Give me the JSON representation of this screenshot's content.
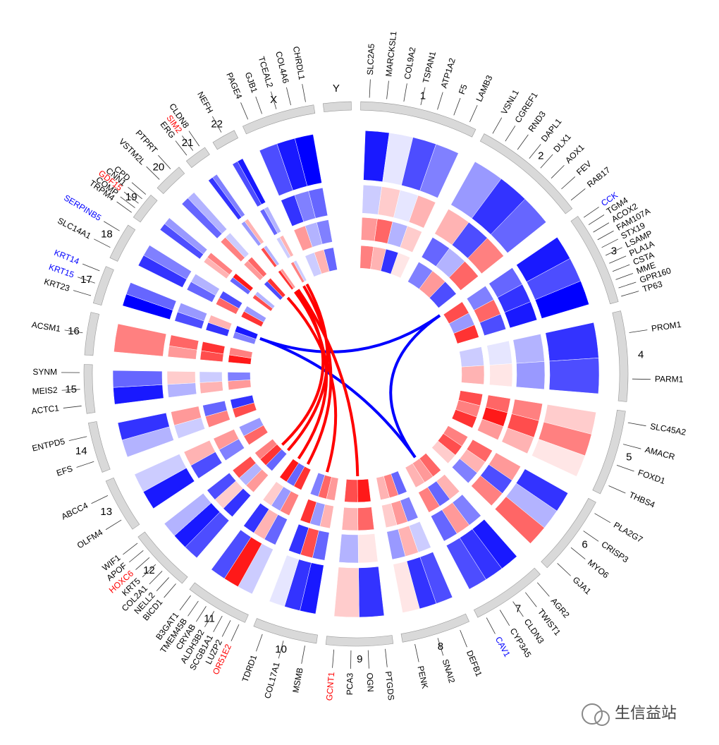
{
  "chart_data": {
    "type": "circos",
    "chromosomes": [
      {
        "name": "1",
        "length": 249,
        "genes": [
          {
            "label": "SLC2A5",
            "color": "#000000"
          },
          {
            "label": "MARCKSL1",
            "color": "#000000"
          },
          {
            "label": "COL9A2",
            "color": "#000000"
          },
          {
            "label": "TSPAN1",
            "color": "#000000"
          },
          {
            "label": "ATP1A2",
            "color": "#000000"
          },
          {
            "label": "F5",
            "color": "#000000"
          },
          {
            "label": "LAMB3",
            "color": "#000000"
          }
        ],
        "rings": [
          [
            -0.9,
            -0.1,
            -0.7,
            -0.5
          ],
          [
            -0.2,
            0.2,
            -0.1,
            0.3
          ],
          [
            0.4,
            0.6,
            -0.3,
            0.2
          ],
          [
            0.5,
            0.3,
            -0.8,
            0.1
          ]
        ]
      },
      {
        "name": "2",
        "length": 243,
        "genes": [
          {
            "label": "VSNL1",
            "color": "#000000"
          },
          {
            "label": "CGREF1",
            "color": "#000000"
          },
          {
            "label": "RND3",
            "color": "#000000"
          },
          {
            "label": "DAPL1",
            "color": "#000000"
          },
          {
            "label": "DLX1",
            "color": "#000000"
          },
          {
            "label": "AOX1",
            "color": "#000000"
          },
          {
            "label": "FEV",
            "color": "#000000"
          },
          {
            "label": "RAB17",
            "color": "#000000"
          }
        ],
        "rings": [
          [
            -0.4,
            -0.8,
            -0.6
          ],
          [
            0.3,
            -0.7,
            0.5
          ],
          [
            -0.6,
            -0.3,
            0.6
          ],
          [
            -0.5,
            0.4,
            -0.7
          ]
        ]
      },
      {
        "name": "3",
        "length": 198,
        "genes": [
          {
            "label": "CCK",
            "color": "#0000ff"
          },
          {
            "label": "TGM4",
            "color": "#000000"
          },
          {
            "label": "ACOX2",
            "color": "#000000"
          },
          {
            "label": "FAM107A",
            "color": "#000000"
          },
          {
            "label": "STX19",
            "color": "#000000"
          },
          {
            "label": "LSAMP",
            "color": "#000000"
          },
          {
            "label": "PLA1A",
            "color": "#000000"
          },
          {
            "label": "CSTA",
            "color": "#000000"
          },
          {
            "label": "MME",
            "color": "#000000"
          },
          {
            "label": "GPR160",
            "color": "#000000"
          },
          {
            "label": "TP63",
            "color": "#000000"
          }
        ],
        "rings": [
          [
            -0.9,
            -0.7,
            -1.0
          ],
          [
            -0.6,
            -0.8,
            -0.9
          ],
          [
            -0.5,
            0.6,
            -0.7
          ],
          [
            0.7,
            -0.4,
            0.8
          ]
        ]
      },
      {
        "name": "4",
        "length": 191,
        "genes": [
          {
            "label": "PROM1",
            "color": "#000000"
          },
          {
            "label": "PARM1",
            "color": "#000000"
          }
        ],
        "rings": [
          [
            -0.8,
            -0.7
          ],
          [
            -0.3,
            -0.4
          ],
          [
            -0.1,
            0.1
          ],
          [
            -0.2,
            0.3
          ]
        ]
      },
      {
        "name": "5",
        "length": 181,
        "genes": [
          {
            "label": "SLC45A2",
            "color": "#000000"
          },
          {
            "label": "AMACR",
            "color": "#000000"
          },
          {
            "label": "FOXD1",
            "color": "#000000"
          },
          {
            "label": "THBS4",
            "color": "#000000"
          }
        ],
        "rings": [
          [
            0.2,
            0.5,
            0.1
          ],
          [
            0.5,
            0.7,
            0.3
          ],
          [
            0.6,
            0.9,
            0.4
          ],
          [
            0.7,
            0.5,
            0.8
          ]
        ]
      },
      {
        "name": "6",
        "length": 171,
        "genes": [
          {
            "label": "PLA2G7",
            "color": "#000000"
          },
          {
            "label": "CRISP3",
            "color": "#000000"
          },
          {
            "label": "MYO6",
            "color": "#000000"
          },
          {
            "label": "GJA1",
            "color": "#000000"
          }
        ],
        "rings": [
          [
            -0.8,
            -0.3,
            0.6
          ],
          [
            0.4,
            -0.7,
            0.5
          ],
          [
            0.6,
            0.3,
            -0.5
          ],
          [
            0.5,
            0.7,
            0.2
          ]
        ]
      },
      {
        "name": "7",
        "length": 159,
        "genes": [
          {
            "label": "AGR2",
            "color": "#000000"
          },
          {
            "label": "TWIST1",
            "color": "#000000"
          },
          {
            "label": "CLDN3",
            "color": "#000000"
          },
          {
            "label": "CYP3A5",
            "color": "#000000"
          },
          {
            "label": "CAV1",
            "color": "#0000ff"
          }
        ],
        "rings": [
          [
            -0.9,
            -0.8,
            -0.7
          ],
          [
            -0.5,
            0.4,
            -0.6
          ],
          [
            0.3,
            -0.6,
            0.5
          ],
          [
            0.6,
            0.4,
            0.3
          ]
        ]
      },
      {
        "name": "8",
        "length": 146,
        "genes": [
          {
            "label": "DEFB1",
            "color": "#000000"
          },
          {
            "label": "SNAI2",
            "color": "#000000"
          },
          {
            "label": "PENK",
            "color": "#000000"
          }
        ],
        "rings": [
          [
            -0.7,
            -0.8,
            0.1
          ],
          [
            -0.2,
            0.3,
            -0.4
          ],
          [
            -0.5,
            0.4,
            0.2
          ],
          [
            -0.6,
            0.5,
            0.3
          ]
        ]
      },
      {
        "name": "9",
        "length": 141,
        "genes": [
          {
            "label": "PTGDS",
            "color": "#000000"
          },
          {
            "label": "OGN",
            "color": "#000000"
          },
          {
            "label": "PCA3",
            "color": "#000000"
          },
          {
            "label": "GCNT1",
            "color": "#ff0000"
          }
        ],
        "rings": [
          [
            -0.8,
            0.2
          ],
          [
            0.1,
            -0.3
          ],
          [
            0.6,
            0.3
          ],
          [
            0.9,
            0.7
          ]
        ]
      },
      {
        "name": "10",
        "length": 136,
        "genes": [
          {
            "label": "MSMB",
            "color": "#000000"
          },
          {
            "label": "COL17A1",
            "color": "#000000"
          },
          {
            "label": "TDRD1",
            "color": "#000000"
          }
        ],
        "rings": [
          [
            -0.9,
            -0.8,
            -0.1
          ],
          [
            -0.6,
            0.7,
            -0.8
          ],
          [
            0.3,
            -0.4,
            0.8
          ],
          [
            0.4,
            0.6,
            -0.5
          ]
        ]
      },
      {
        "name": "11",
        "length": 135,
        "genes": [
          {
            "label": "OR51E2",
            "color": "#ff0000"
          },
          {
            "label": "LUZP2",
            "color": "#000000"
          },
          {
            "label": "SCGB1A1",
            "color": "#000000"
          },
          {
            "label": "ALDH3B2",
            "color": "#000000"
          },
          {
            "label": "CRYAB",
            "color": "#000000"
          },
          {
            "label": "TMEM45B",
            "color": "#000000"
          },
          {
            "label": "B3GAT1",
            "color": "#000000"
          }
        ],
        "rings": [
          [
            -0.2,
            0.9,
            -0.7
          ],
          [
            -0.6,
            0.3,
            -0.8
          ],
          [
            0.5,
            -0.4,
            0.2
          ],
          [
            0.8,
            -0.6,
            0.9
          ]
        ]
      },
      {
        "name": "12",
        "length": 134,
        "genes": [
          {
            "label": "BICD1",
            "color": "#000000"
          },
          {
            "label": "NELL2",
            "color": "#000000"
          },
          {
            "label": "COL2A1",
            "color": "#000000"
          },
          {
            "label": "KRT5",
            "color": "#000000"
          },
          {
            "label": "HOXC6",
            "color": "#ff0000"
          },
          {
            "label": "APOF",
            "color": "#000000"
          },
          {
            "label": "WIF1",
            "color": "#000000"
          }
        ],
        "rings": [
          [
            -0.7,
            -0.9,
            -0.3
          ],
          [
            -0.8,
            0.2,
            -0.7
          ],
          [
            0.4,
            -0.3,
            0.7
          ],
          [
            -0.6,
            0.8,
            0.5
          ]
        ]
      },
      {
        "name": "13",
        "length": 115,
        "genes": [
          {
            "label": "OLFM4",
            "color": "#000000"
          },
          {
            "label": "ABCC4",
            "color": "#000000"
          }
        ],
        "rings": [
          [
            -0.9,
            -0.2
          ],
          [
            -0.7,
            0.3
          ],
          [
            -0.5,
            0.4
          ],
          [
            0.6,
            -0.4
          ]
        ]
      },
      {
        "name": "14",
        "length": 107,
        "genes": [
          {
            "label": "EFS",
            "color": "#000000"
          },
          {
            "label": "ENTPD5",
            "color": "#000000"
          }
        ],
        "rings": [
          [
            -0.3,
            -0.8
          ],
          [
            -0.2,
            0.4
          ],
          [
            0.5,
            -0.6
          ],
          [
            0.7,
            -0.8
          ]
        ]
      },
      {
        "name": "15",
        "length": 103,
        "genes": [
          {
            "label": "ACTC1",
            "color": "#000000"
          },
          {
            "label": "MEIS2",
            "color": "#000000"
          },
          {
            "label": "SYNM",
            "color": "#000000"
          }
        ],
        "rings": [
          [
            -0.9,
            -0.6
          ],
          [
            -0.3,
            0.2
          ],
          [
            0.3,
            -0.2
          ],
          [
            0.4,
            -0.5
          ]
        ]
      },
      {
        "name": "16",
        "length": 90,
        "genes": [
          {
            "label": "ACSM1",
            "color": "#000000"
          }
        ],
        "rings": [
          [
            0.5
          ],
          [
            0.4,
            0.6
          ],
          [
            0.7,
            0.8
          ],
          [
            0.9,
            0.5
          ]
        ]
      },
      {
        "name": "17",
        "length": 81,
        "genes": [
          {
            "label": "KRT23",
            "color": "#000000"
          },
          {
            "label": "KRT15",
            "color": "#0000ff"
          },
          {
            "label": "KRT14",
            "color": "#0000ff"
          }
        ],
        "rings": [
          [
            -1.0,
            -0.6
          ],
          [
            -0.7,
            -0.4
          ],
          [
            -0.8,
            0.3
          ],
          [
            -0.5,
            -0.9
          ]
        ]
      },
      {
        "name": "18",
        "length": 78,
        "genes": [
          {
            "label": "SLC14A1",
            "color": "#000000"
          },
          {
            "label": "SERPINB5",
            "color": "#0000ff"
          }
        ],
        "rings": [
          [
            -0.8,
            -0.5
          ],
          [
            -0.6,
            -0.3
          ],
          [
            0.6,
            -0.7
          ],
          [
            0.8,
            -0.4
          ]
        ]
      },
      {
        "name": "19",
        "length": 59,
        "genes": [
          {
            "label": "TRPM4",
            "color": "#000000"
          },
          {
            "label": "COMP",
            "color": "#000000"
          },
          {
            "label": "GDF15",
            "color": "#ff0000"
          },
          {
            "label": "CNN1",
            "color": "#000000"
          },
          {
            "label": "CPD",
            "color": "#000000"
          }
        ],
        "rings": [
          [
            -0.7,
            -0.4
          ],
          [
            0.3,
            0.5
          ],
          [
            -0.6,
            0.9
          ],
          [
            0.7,
            -0.3
          ]
        ]
      },
      {
        "name": "20",
        "length": 63,
        "genes": [
          {
            "label": "VSTM2L",
            "color": "#000000"
          },
          {
            "label": "PTPRT",
            "color": "#000000"
          }
        ],
        "rings": [
          [
            -0.6,
            -0.3
          ],
          [
            0.5,
            -0.2
          ],
          [
            0.4,
            0.6
          ],
          [
            -0.7,
            0.8
          ]
        ]
      },
      {
        "name": "21",
        "length": 48,
        "genes": [
          {
            "label": "ERG",
            "color": "#000000"
          },
          {
            "label": "SIM2",
            "color": "#ff0000"
          },
          {
            "label": "CLDN8",
            "color": "#000000"
          }
        ],
        "rings": [
          [
            -0.8,
            -0.5
          ],
          [
            -0.4,
            0.3
          ],
          [
            0.7,
            -0.3
          ],
          [
            0.8,
            0.4
          ]
        ]
      },
      {
        "name": "22",
        "length": 51,
        "genes": [
          {
            "label": "NEFH",
            "color": "#000000"
          }
        ],
        "rings": [
          [
            -0.7,
            -0.9
          ],
          [
            -0.6,
            -0.3
          ],
          [
            -0.2,
            0.3
          ],
          [
            0.5,
            -0.2
          ]
        ]
      },
      {
        "name": "X",
        "length": 155,
        "genes": [
          {
            "label": "PAGE4",
            "color": "#000000"
          },
          {
            "label": "GJB1",
            "color": "#000000"
          },
          {
            "label": "TCEAL2",
            "color": "#000000"
          },
          {
            "label": "COL4A6",
            "color": "#000000"
          },
          {
            "label": "CHRDL1",
            "color": "#000000"
          }
        ],
        "rings": [
          [
            -0.7,
            -0.9,
            -1.0
          ],
          [
            -0.8,
            -0.5,
            -0.6
          ],
          [
            0.4,
            -0.3,
            -0.5
          ],
          [
            -0.2,
            0.3,
            -0.6
          ]
        ]
      },
      {
        "name": "Y",
        "length": 59,
        "genes": [],
        "rings": [
          [],
          [],
          [],
          []
        ]
      }
    ],
    "links": [
      {
        "color": "#0000ff",
        "from": {
          "chrom": "3",
          "pos": 5
        },
        "to": {
          "chrom": "17",
          "pos": 51
        }
      },
      {
        "color": "#0000ff",
        "from": {
          "chrom": "3",
          "pos": 5
        },
        "to": {
          "chrom": "7",
          "pos": 72
        }
      },
      {
        "color": "#0000ff",
        "from": {
          "chrom": "17",
          "pos": 51
        },
        "to": {
          "chrom": "7",
          "pos": 72
        }
      },
      {
        "color": "#ff0000",
        "from": {
          "chrom": "21",
          "pos": 30
        },
        "to": {
          "chrom": "12",
          "pos": 64
        }
      },
      {
        "color": "#ff0000",
        "from": {
          "chrom": "21",
          "pos": 40
        },
        "to": {
          "chrom": "9",
          "pos": 69
        }
      },
      {
        "color": "#ff0000",
        "from": {
          "chrom": "22",
          "pos": 10
        },
        "to": {
          "chrom": "11",
          "pos": 40
        }
      },
      {
        "color": "#ff0000",
        "from": {
          "chrom": "22",
          "pos": 30
        },
        "to": {
          "chrom": "12",
          "pos": 20
        }
      },
      {
        "color": "#ff0000",
        "from": {
          "chrom": "20",
          "pos": 50
        },
        "to": {
          "chrom": "10",
          "pos": 80
        }
      },
      {
        "color": "#ff0000",
        "from": {
          "chrom": "21",
          "pos": 20
        },
        "to": {
          "chrom": "11",
          "pos": 100
        }
      }
    ],
    "watermark": "生信益站"
  }
}
